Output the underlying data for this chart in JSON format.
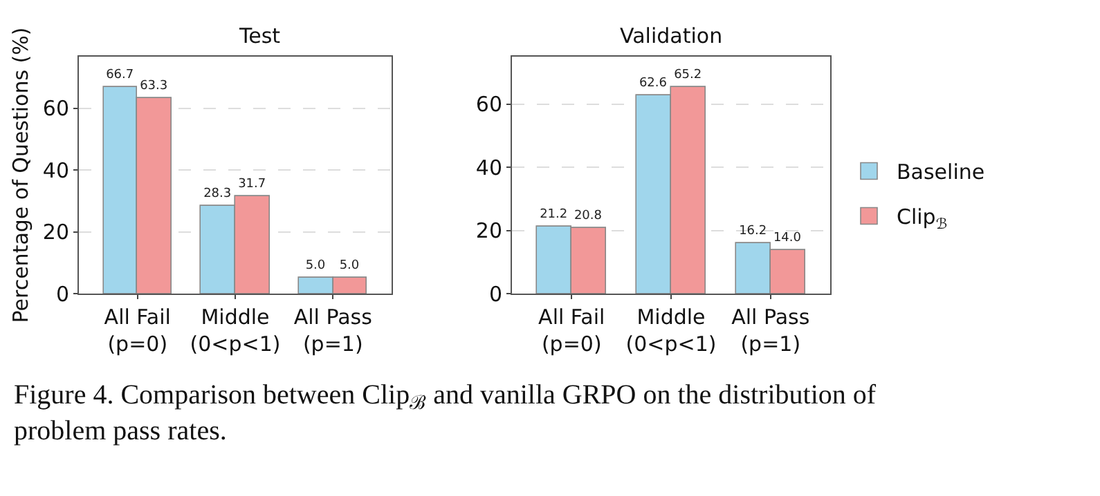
{
  "chart_data": [
    {
      "type": "bar",
      "title": "Test",
      "ylabel": "Percentage of Questions (%)",
      "categories": [
        "All Fail\n(p=0)",
        "Middle\n(0<p<1)",
        "All Pass\n(p=1)"
      ],
      "series": [
        {
          "name": "Baseline",
          "color": "#a0d6ec",
          "values": [
            66.7,
            28.3,
            5.0
          ],
          "value_labels": [
            "66.7",
            "28.3",
            "5.0"
          ]
        },
        {
          "name": "Clip$_{ℬ}$",
          "color": "#f29898",
          "values": [
            63.3,
            31.7,
            5.0
          ],
          "value_labels": [
            "63.3",
            "31.7",
            "5.0"
          ]
        }
      ],
      "ylim": [
        0,
        76.7
      ],
      "yticks": [
        0,
        20,
        40,
        60
      ],
      "grid": "y",
      "legend": "right"
    },
    {
      "type": "bar",
      "title": "Validation",
      "categories": [
        "All Fail\n(p=0)",
        "Middle\n(0<p<1)",
        "All Pass\n(p=1)"
      ],
      "series": [
        {
          "name": "Baseline",
          "color": "#a0d6ec",
          "values": [
            21.2,
            62.6,
            16.2
          ],
          "value_labels": [
            "21.2",
            "62.6",
            "16.2"
          ]
        },
        {
          "name": "Clip$_{ℬ}$",
          "color": "#f29898",
          "values": [
            20.8,
            65.2,
            14.0
          ],
          "value_labels": [
            "20.8",
            "65.2",
            "14.0"
          ]
        }
      ],
      "ylim": [
        0,
        75
      ],
      "yticks": [
        0,
        20,
        40,
        60
      ],
      "grid": "y",
      "legend": "right",
      "annotations": [
        "Figure 4. Comparison between Clip$_{ℬ}$ and vanilla GRPO on the distribution of problem pass rates."
      ]
    }
  ]
}
